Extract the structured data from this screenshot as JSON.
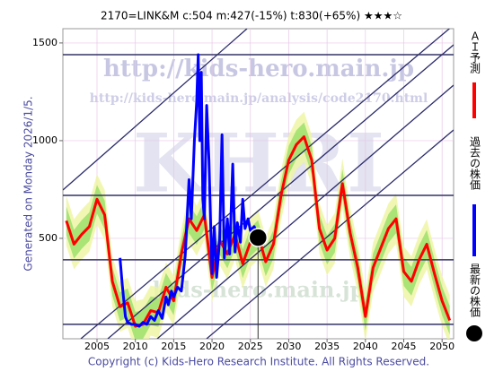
{
  "chart_data": {
    "type": "line",
    "title": "2170=LINK&M    c:504  m:427(-15%)  t:830(+65%)  ★★★☆",
    "side_note": "Generated on Monday 2026/1/5.",
    "copyright": "Copyright (c) Kids-Hero Research Institute. All Rights Reserved.",
    "watermarks": [
      "http://kids-hero.main.jp",
      "http://kids-hero.main.jp/analysis/code2170.html",
      "KHRI",
      "kids-hero.main.jp"
    ],
    "xlim": [
      2000.55,
      2051.5
    ],
    "xticks": [
      2005,
      2010,
      2015,
      2020,
      2025,
      2030,
      2035,
      2040,
      2045,
      2050
    ],
    "ylim": [
      -14,
      1573
    ],
    "yticks": [
      500,
      1000,
      1500
    ],
    "grid": true,
    "levels": [
      1440,
      720,
      390,
      60
    ],
    "series": [
      {
        "name": "ＡＩ予測",
        "color": "#ff0000",
        "x": [
          2001,
          2002,
          2003,
          2004,
          2005,
          2006,
          2007,
          2008,
          2009,
          2010,
          2011,
          2012,
          2013,
          2014,
          2015,
          2016,
          2017,
          2018,
          2019,
          2020,
          2021,
          2022,
          2023,
          2024,
          2025,
          2026,
          2027,
          2028,
          2029,
          2030,
          2031,
          2032,
          2033,
          2034,
          2035,
          2036,
          2037,
          2038,
          2039,
          2040,
          2041,
          2042,
          2043,
          2044,
          2045,
          2046,
          2047,
          2048,
          2049,
          2050,
          2051
        ],
        "values": [
          590,
          470,
          520,
          560,
          700,
          620,
          280,
          150,
          170,
          50,
          60,
          130,
          120,
          250,
          180,
          420,
          600,
          540,
          620,
          300,
          490,
          420,
          520,
          370,
          480,
          520,
          380,
          470,
          720,
          900,
          980,
          1020,
          900,
          550,
          440,
          500,
          780,
          530,
          350,
          100,
          350,
          450,
          550,
          600,
          330,
          280,
          390,
          470,
          320,
          180,
          80
        ]
      },
      {
        "name": "過去の株価",
        "color": "#0000ff",
        "x": [
          2008,
          2008.3,
          2008.7,
          2009,
          2009.5,
          2010,
          2010.5,
          2011,
          2011.5,
          2012,
          2012.5,
          2013,
          2013.5,
          2014,
          2014.3,
          2014.7,
          2015,
          2015.5,
          2016,
          2016.5,
          2017,
          2017.3,
          2017.7,
          2018,
          2018.2,
          2018.4,
          2018.6,
          2018.8,
          2019,
          2019.3,
          2019.6,
          2019.8,
          2020,
          2020.3,
          2020.6,
          2021,
          2021.3,
          2021.6,
          2022,
          2022.3,
          2022.7,
          2023,
          2023.3,
          2023.7,
          2024,
          2024.3,
          2024.7,
          2025,
          2025.5,
          2026
        ],
        "values": [
          400,
          260,
          100,
          70,
          60,
          60,
          50,
          70,
          60,
          100,
          80,
          130,
          90,
          200,
          160,
          230,
          200,
          250,
          230,
          410,
          800,
          600,
          1000,
          1200,
          1440,
          1000,
          1350,
          700,
          600,
          1180,
          900,
          600,
          320,
          560,
          300,
          500,
          1030,
          400,
          600,
          420,
          880,
          430,
          580,
          480,
          700,
          550,
          600,
          540,
          560,
          504
        ]
      }
    ],
    "latest": {
      "name": "最新の株価",
      "x": 2026,
      "value": 504
    }
  }
}
